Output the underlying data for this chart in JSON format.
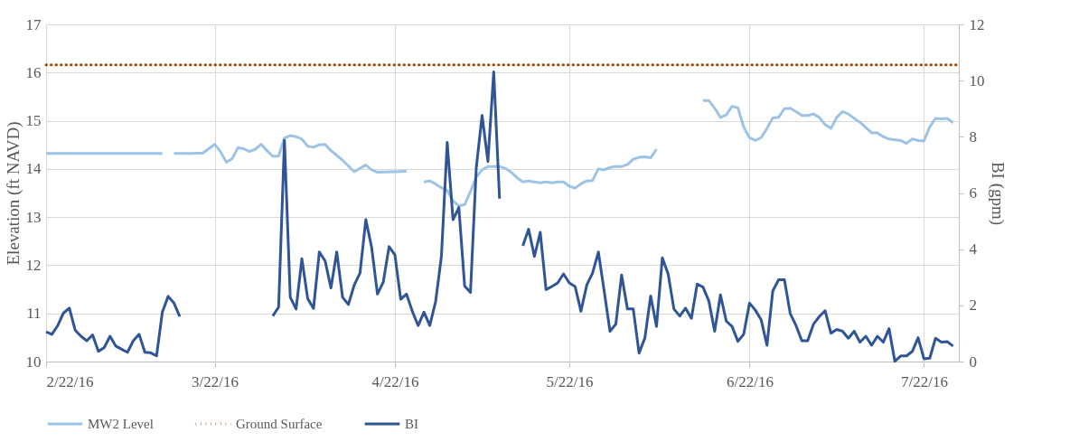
{
  "chart_data": {
    "type": "line",
    "ylabel": "Elevation (ft NAVD)",
    "y2label": "BI (gpm)",
    "xlim": [
      "2016-02-22",
      "2016-07-28"
    ],
    "xticks": [
      {
        "value": "2016-02-22",
        "label": "2/22/16"
      },
      {
        "value": "2016-03-22",
        "label": "3/22/16"
      },
      {
        "value": "2016-04-22",
        "label": "4/22/16"
      },
      {
        "value": "2016-05-22",
        "label": "5/22/16"
      },
      {
        "value": "2016-06-22",
        "label": "6/22/16"
      },
      {
        "value": "2016-07-22",
        "label": "7/22/16"
      }
    ],
    "ylim": [
      10,
      17
    ],
    "yticks": [
      10,
      11,
      12,
      13,
      14,
      15,
      16,
      17
    ],
    "y2lim": [
      0,
      12
    ],
    "y2ticks": [
      0,
      2,
      4,
      6,
      8,
      10,
      12
    ],
    "grid": true,
    "legend": "bottom",
    "line_style": "solid",
    "marker": "none",
    "series": [
      {
        "name": "MW2 Level",
        "color": "#9dc3e6",
        "x": [
          "2016-02-22",
          "2016-03-03",
          "2016-03-13",
          "2016-03-14",
          "2016-03-15",
          "2016-03-18",
          "2016-03-20",
          "2016-03-22",
          "2016-03-23",
          "2016-03-24",
          "2016-03-25",
          "2016-03-26",
          "2016-03-27",
          "2016-03-28",
          "2016-03-29",
          "2016-03-30",
          "2016-03-31",
          "2016-04-01",
          "2016-04-02",
          "2016-04-03",
          "2016-04-04",
          "2016-04-05",
          "2016-04-06",
          "2016-04-07",
          "2016-04-08",
          "2016-04-09",
          "2016-04-10",
          "2016-04-11",
          "2016-04-13",
          "2016-04-15",
          "2016-04-16",
          "2016-04-17",
          "2016-04-18",
          "2016-04-19",
          "2016-04-22",
          "2016-04-24",
          "2016-04-25",
          "2016-04-27",
          "2016-04-28",
          "2016-04-29",
          "2016-04-30",
          "2016-05-01",
          "2016-05-02",
          "2016-05-03",
          "2016-05-04",
          "2016-05-05",
          "2016-05-06",
          "2016-05-07",
          "2016-05-08",
          "2016-05-10",
          "2016-05-11",
          "2016-05-12",
          "2016-05-13",
          "2016-05-14",
          "2016-05-15",
          "2016-05-16",
          "2016-05-17",
          "2016-05-18",
          "2016-05-19",
          "2016-05-20",
          "2016-05-21",
          "2016-05-22",
          "2016-05-23",
          "2016-05-24",
          "2016-05-25",
          "2016-05-26",
          "2016-05-27",
          "2016-05-28",
          "2016-05-29",
          "2016-05-30",
          "2016-05-31",
          "2016-06-01",
          "2016-06-02",
          "2016-06-03",
          "2016-06-04",
          "2016-06-05",
          "2016-06-06",
          "2016-06-07",
          "2016-06-14",
          "2016-06-15",
          "2016-06-16",
          "2016-06-17",
          "2016-06-18",
          "2016-06-19",
          "2016-06-20",
          "2016-06-21",
          "2016-06-22",
          "2016-06-23",
          "2016-06-24",
          "2016-06-25",
          "2016-06-26",
          "2016-06-27",
          "2016-06-28",
          "2016-06-29",
          "2016-06-30",
          "2016-07-01",
          "2016-07-02",
          "2016-07-03",
          "2016-07-04",
          "2016-07-05",
          "2016-07-06",
          "2016-07-07",
          "2016-07-08",
          "2016-07-09",
          "2016-07-10",
          "2016-07-11",
          "2016-07-12",
          "2016-07-13",
          "2016-07-14",
          "2016-07-15",
          "2016-07-16",
          "2016-07-18",
          "2016-07-19",
          "2016-07-20",
          "2016-07-21",
          "2016-07-22",
          "2016-07-23",
          "2016-07-24",
          "2016-07-25",
          "2016-07-26",
          "2016-07-27"
        ],
        "values": [
          14.32,
          14.32,
          14.32,
          null,
          14.32,
          14.32,
          14.33,
          14.51,
          14.36,
          14.14,
          14.21,
          14.44,
          14.42,
          14.36,
          14.41,
          14.51,
          14.38,
          14.26,
          14.27,
          14.64,
          14.69,
          14.67,
          14.62,
          14.47,
          14.45,
          14.5,
          14.51,
          14.38,
          14.18,
          13.94,
          14.01,
          14.08,
          13.98,
          13.93,
          13.94,
          13.95,
          null,
          13.73,
          13.75,
          13.69,
          13.61,
          13.55,
          13.34,
          13.23,
          13.26,
          13.53,
          13.83,
          13.98,
          14.05,
          14.05,
          14.01,
          13.93,
          13.82,
          13.73,
          13.75,
          13.73,
          13.71,
          13.73,
          13.71,
          13.73,
          13.73,
          13.64,
          13.6,
          13.69,
          13.75,
          13.76,
          14.0,
          13.98,
          14.03,
          14.05,
          14.05,
          14.09,
          14.2,
          14.24,
          14.25,
          14.23,
          14.41,
          null,
          15.42,
          15.42,
          15.26,
          15.07,
          15.12,
          15.3,
          15.27,
          14.87,
          14.65,
          14.59,
          14.65,
          14.84,
          15.06,
          15.07,
          15.25,
          15.26,
          15.19,
          15.11,
          15.11,
          15.14,
          15.07,
          14.92,
          14.84,
          15.07,
          15.19,
          15.14,
          15.05,
          14.97,
          14.86,
          14.75,
          14.75,
          14.67,
          14.62,
          14.59,
          14.53,
          14.62,
          14.59,
          14.58,
          14.87,
          15.05,
          15.04,
          15.05,
          14.96
        ]
      },
      {
        "name": "Ground Surface",
        "color": "#a0460f",
        "line_style": "dotted",
        "x": [
          "2016-02-22",
          "2016-07-28"
        ],
        "values": [
          16.16,
          16.16
        ]
      },
      {
        "name": "BI",
        "color": "#2f5597",
        "axis": "y2",
        "x": [
          "2016-02-22",
          "2016-02-23",
          "2016-02-24",
          "2016-02-25",
          "2016-02-26",
          "2016-02-27",
          "2016-02-28",
          "2016-02-29",
          "2016-03-01",
          "2016-03-02",
          "2016-03-03",
          "2016-03-04",
          "2016-03-05",
          "2016-03-06",
          "2016-03-07",
          "2016-03-08",
          "2016-03-09",
          "2016-03-10",
          "2016-03-11",
          "2016-03-12",
          "2016-03-13",
          "2016-03-14",
          "2016-03-15",
          "2016-03-16",
          "2016-03-17",
          "2016-04-01",
          "2016-04-02",
          "2016-04-03",
          "2016-04-04",
          "2016-04-05",
          "2016-04-06",
          "2016-04-07",
          "2016-04-08",
          "2016-04-09",
          "2016-04-10",
          "2016-04-11",
          "2016-04-12",
          "2016-04-13",
          "2016-04-14",
          "2016-04-15",
          "2016-04-16",
          "2016-04-17",
          "2016-04-18",
          "2016-04-19",
          "2016-04-20",
          "2016-04-21",
          "2016-04-22",
          "2016-04-23",
          "2016-04-24",
          "2016-04-25",
          "2016-04-26",
          "2016-04-27",
          "2016-04-28",
          "2016-04-29",
          "2016-04-30",
          "2016-05-01",
          "2016-05-02",
          "2016-05-03",
          "2016-05-04",
          "2016-05-05",
          "2016-05-06",
          "2016-05-07",
          "2016-05-08",
          "2016-05-09",
          "2016-05-10",
          "2016-05-11",
          "2016-05-14",
          "2016-05-15",
          "2016-05-16",
          "2016-05-17",
          "2016-05-18",
          "2016-05-19",
          "2016-05-20",
          "2016-05-21",
          "2016-05-22",
          "2016-05-23",
          "2016-05-24",
          "2016-05-25",
          "2016-05-26",
          "2016-05-27",
          "2016-05-28",
          "2016-05-29",
          "2016-05-30",
          "2016-05-31",
          "2016-06-01",
          "2016-06-02",
          "2016-06-03",
          "2016-06-04",
          "2016-06-05",
          "2016-06-06",
          "2016-06-07",
          "2016-06-08",
          "2016-06-09",
          "2016-06-10",
          "2016-06-11",
          "2016-06-12",
          "2016-06-13",
          "2016-06-14",
          "2016-06-15",
          "2016-06-16",
          "2016-06-17",
          "2016-06-18",
          "2016-06-19",
          "2016-06-20",
          "2016-06-21",
          "2016-06-22",
          "2016-06-23",
          "2016-06-24",
          "2016-06-25",
          "2016-06-26",
          "2016-06-27",
          "2016-06-28",
          "2016-06-29",
          "2016-06-30",
          "2016-07-01",
          "2016-07-02",
          "2016-07-03",
          "2016-07-04",
          "2016-07-05",
          "2016-07-06",
          "2016-07-07",
          "2016-07-08",
          "2016-07-09",
          "2016-07-10",
          "2016-07-11",
          "2016-07-12",
          "2016-07-13",
          "2016-07-14",
          "2016-07-15",
          "2016-07-16",
          "2016-07-17",
          "2016-07-18",
          "2016-07-19",
          "2016-07-20",
          "2016-07-21",
          "2016-07-22",
          "2016-07-23",
          "2016-07-24",
          "2016-07-25",
          "2016-07-26",
          "2016-07-27"
        ],
        "values": [
          1.06,
          0.97,
          1.28,
          1.73,
          1.9,
          1.12,
          0.9,
          0.74,
          0.95,
          0.36,
          0.5,
          0.9,
          0.55,
          0.44,
          0.33,
          0.74,
          0.97,
          0.33,
          0.31,
          0.2,
          1.76,
          2.32,
          2.08,
          1.6,
          null,
          1.62,
          1.94,
          7.87,
          2.29,
          1.87,
          3.66,
          2.24,
          1.89,
          3.9,
          3.58,
          2.62,
          3.9,
          2.29,
          2.03,
          2.72,
          3.15,
          5.05,
          4.06,
          2.4,
          2.83,
          4.09,
          3.8,
          2.22,
          2.4,
          1.79,
          1.28,
          1.76,
          1.28,
          2.13,
          3.74,
          7.8,
          5.05,
          5.48,
          2.69,
          2.46,
          6.91,
          8.76,
          7.12,
          10.31,
          5.8,
          null,
          4.12,
          4.71,
          3.74,
          4.6,
          2.56,
          2.67,
          2.8,
          3.12,
          2.8,
          2.67,
          1.79,
          2.72,
          3.15,
          3.9,
          2.51,
          1.08,
          1.33,
          3.08,
          1.87,
          1.87,
          0.3,
          0.84,
          2.33,
          1.25,
          3.69,
          3.12,
          1.87,
          1.62,
          1.9,
          1.54,
          2.76,
          2.65,
          2.16,
          1.08,
          2.37,
          1.44,
          1.25,
          0.72,
          0.97,
          2.08,
          1.83,
          1.49,
          0.58,
          2.51,
          2.91,
          2.91,
          1.71,
          1.28,
          0.74,
          0.74,
          1.33,
          1.6,
          1.81,
          1.01,
          1.14,
          1.08,
          0.83,
          1.08,
          0.69,
          0.9,
          0.58,
          0.9,
          0.69,
          1.17,
          0.01,
          0.2,
          0.2,
          0.36,
          0.85,
          0.1,
          0.12,
          0.83,
          0.69,
          0.71,
          0.55
        ]
      }
    ]
  }
}
